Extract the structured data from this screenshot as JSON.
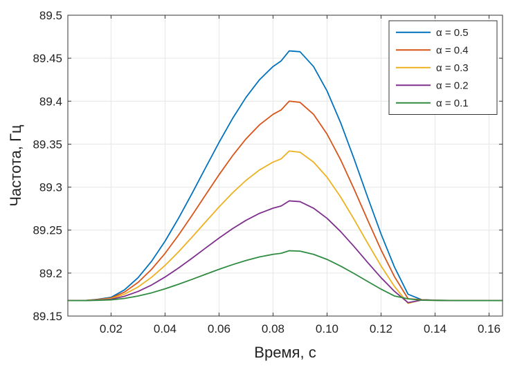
{
  "chart_data": {
    "type": "line",
    "title": "",
    "xlabel": "Время, с",
    "ylabel": "Частота, Гц",
    "xlim": [
      0.004,
      0.165
    ],
    "ylim": [
      89.15,
      89.5
    ],
    "grid": true,
    "legend_position": "top-right",
    "x_ticks": [
      0.02,
      0.04,
      0.06,
      0.08,
      0.1,
      0.12,
      0.14,
      0.16
    ],
    "x_tick_labels": [
      "0.02",
      "0.04",
      "0.06",
      "0.08",
      "0.10",
      "0.12",
      "0.14",
      "0.16"
    ],
    "y_ticks": [
      89.15,
      89.2,
      89.25,
      89.3,
      89.35,
      89.4,
      89.45,
      89.5
    ],
    "y_tick_labels": [
      "89.15",
      "89.2",
      "89.25",
      "89.3",
      "89.35",
      "89.4",
      "89.45",
      "89.5"
    ],
    "x": [
      0.004,
      0.01,
      0.015,
      0.02,
      0.025,
      0.03,
      0.035,
      0.04,
      0.045,
      0.05,
      0.055,
      0.06,
      0.065,
      0.07,
      0.075,
      0.08,
      0.083,
      0.086,
      0.09,
      0.095,
      0.1,
      0.105,
      0.11,
      0.115,
      0.12,
      0.125,
      0.13,
      0.135,
      0.14,
      0.145,
      0.15,
      0.155,
      0.16,
      0.165
    ],
    "series": [
      {
        "name": "α = 0.5",
        "color": "#0072BD",
        "values": [
          89.168,
          89.168,
          89.1695,
          89.1718,
          89.1805,
          89.1946,
          89.2137,
          89.2371,
          89.2638,
          89.2927,
          89.3225,
          89.352,
          89.3798,
          89.4045,
          89.425,
          89.4403,
          89.4468,
          89.4585,
          89.4575,
          89.4403,
          89.4119,
          89.3752,
          89.333,
          89.2886,
          89.2455,
          89.2068,
          89.1754,
          89.1691,
          89.1685,
          89.1682,
          89.1681,
          89.168,
          89.168,
          89.168
        ]
      },
      {
        "name": "α = 0.4",
        "color": "#D95319",
        "values": [
          89.168,
          89.168,
          89.1692,
          89.171,
          89.1779,
          89.1891,
          89.2043,
          89.2229,
          89.2442,
          89.2672,
          89.2909,
          89.3144,
          89.3365,
          89.3562,
          89.3725,
          89.3847,
          89.3898,
          89.4,
          89.3986,
          89.3847,
          89.3617,
          89.332,
          89.2978,
          89.2619,
          89.227,
          89.1957,
          89.1702,
          89.169,
          89.1684,
          89.1682,
          89.1681,
          89.168,
          89.168,
          89.168
        ]
      },
      {
        "name": "α = 0.3",
        "color": "#EDB120",
        "values": [
          89.168,
          89.168,
          89.1689,
          89.1703,
          89.1755,
          89.1838,
          89.1951,
          89.2089,
          89.2247,
          89.2418,
          89.2594,
          89.2769,
          89.2933,
          89.3079,
          89.32,
          89.3291,
          89.3329,
          89.342,
          89.3406,
          89.3291,
          89.3115,
          89.2887,
          89.2625,
          89.235,
          89.2083,
          89.1843,
          89.1648,
          89.1688,
          89.1684,
          89.1682,
          89.1681,
          89.168,
          89.168,
          89.168
        ]
      },
      {
        "name": "α = 0.2",
        "color": "#7E2F8E",
        "values": [
          89.168,
          89.168,
          89.1686,
          89.1695,
          89.173,
          89.1786,
          89.1861,
          89.1954,
          89.2059,
          89.2173,
          89.2291,
          89.2407,
          89.2517,
          89.2614,
          89.2695,
          89.2755,
          89.278,
          89.284,
          89.2831,
          89.2755,
          89.2637,
          89.2484,
          89.2309,
          89.2125,
          89.1947,
          89.1787,
          89.1656,
          89.1686,
          89.1683,
          89.1681,
          89.168,
          89.168,
          89.168,
          89.168
        ]
      },
      {
        "name": "α = 0.1",
        "color": "#2E8B3F",
        "values": [
          89.168,
          89.168,
          89.1683,
          89.1688,
          89.1705,
          89.1733,
          89.177,
          89.1817,
          89.187,
          89.1927,
          89.1986,
          89.2044,
          89.2098,
          89.2147,
          89.2188,
          89.2218,
          89.223,
          89.226,
          89.2255,
          89.2218,
          89.2159,
          89.2082,
          89.1995,
          89.1903,
          89.1813,
          89.1733,
          89.17,
          89.1684,
          89.1682,
          89.1681,
          89.168,
          89.168,
          89.168,
          89.168
        ]
      }
    ]
  }
}
